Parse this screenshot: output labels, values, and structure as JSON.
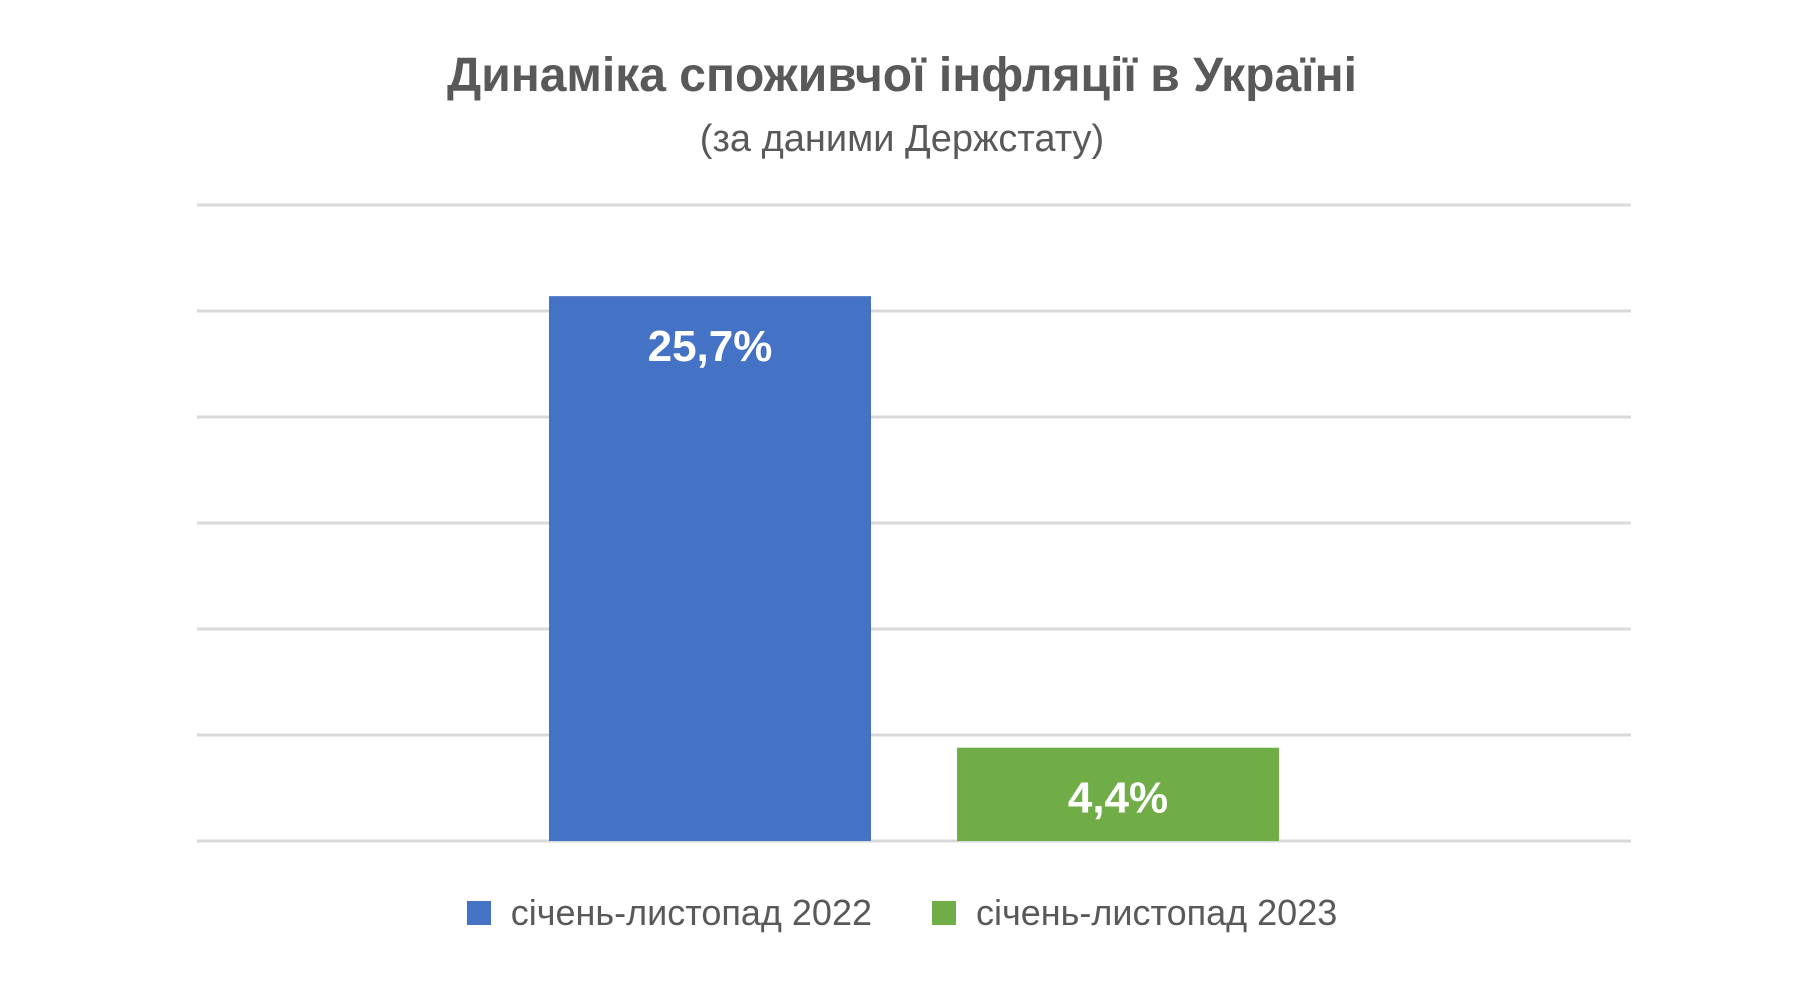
{
  "chart_data": {
    "type": "bar",
    "title": "Динаміка споживчої інфляції в Україні",
    "subtitle": "(за даними Держстату)",
    "categories": [
      "січень-листопад 2022",
      "січень-листопад 2023"
    ],
    "values": [
      25.7,
      4.4
    ],
    "data_labels": [
      "25,7%",
      "4,4%"
    ],
    "colors": [
      "#4472C4",
      "#70AD47"
    ],
    "ylim": [
      0,
      30
    ],
    "y_gridline_step": 5,
    "y_tick_labels_visible": false,
    "grid": true,
    "legend_position": "bottom",
    "legend": [
      {
        "label": "січень-листопад 2022",
        "color": "#4472C4"
      },
      {
        "label": "січень-листопад 2023",
        "color": "#70AD47"
      }
    ]
  }
}
